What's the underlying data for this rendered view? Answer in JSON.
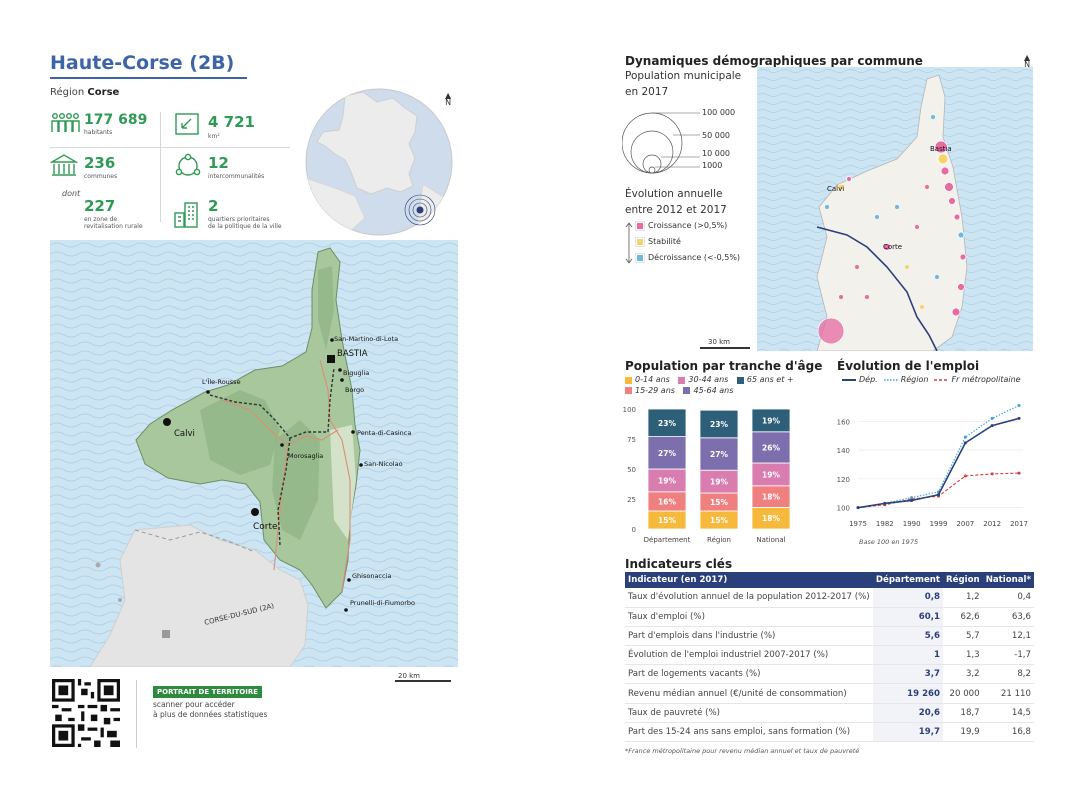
{
  "left": {
    "title": "Haute-Corse (2B)",
    "region_prefix": "Région ",
    "region_name": "Corse",
    "stats": {
      "habitants_value": "177 689",
      "habitants_label": "habitants",
      "area_value": "4 721",
      "area_label": "km²",
      "communes_value": "236",
      "communes_label": "communes",
      "interco_value": "12",
      "interco_label": "intercommunalités",
      "dont_label": "dont",
      "rural_value": "227",
      "rural_label_1": "en zone de",
      "rural_label_2": "revitalisation rurale",
      "quartiers_value": "2",
      "quartiers_label_1": "quartiers prioritaires",
      "quartiers_label_2": "de la politique de la ville"
    },
    "north": "N",
    "map_labels": {
      "san_martino": "San-Martino-di-Lota",
      "bastia": "BASTIA",
      "ile_rousse": "L'Île-Rousse",
      "biguglia": "Biguglia",
      "borgo": "Borgo",
      "calvi": "Calvi",
      "penta": "Penta-di-Casinca",
      "morosaglia": "Morosaglia",
      "san_nicolao": "San-Nicolao",
      "corte": "Corte",
      "ghisonaccia": "Ghisonaccia",
      "prunelli": "Prunelli-di-Fiumorbo",
      "corse_du_sud": "CORSE-DU-SUD (2A)"
    },
    "scale": "20 km",
    "badge": "PORTRAIT DE TERRITOIRE",
    "scan_1": "scanner pour accéder",
    "scan_2": "à plus de données statistiques"
  },
  "right": {
    "title": "Dynamiques démographiques par commune",
    "north": "N",
    "pop_title": "Population municipale",
    "pop_sub": "en 2017",
    "circle_labels": [
      "100 000",
      "50 000",
      "10 000",
      "1000"
    ],
    "evo_title": "Évolution annuelle",
    "evo_sub": "entre 2012 et 2017",
    "legend": [
      {
        "label": "Croissance (>0,5%)",
        "color": "#e86aa0"
      },
      {
        "label": "Stabilité",
        "color": "#f5d46a"
      },
      {
        "label": "Décroissance (<-0,5%)",
        "color": "#6fb6e0"
      }
    ],
    "map_labels": {
      "bastia": "Bastia",
      "calvi": "Calvi",
      "corte": "Corte"
    },
    "scale": "30 km",
    "age_title": "Population par tranche d'âge",
    "emp_title": "Évolution de l'emploi",
    "ind_title": "Indicateurs clés",
    "footnote": "*France métropolitaine pour revenu médian annuel et taux de pauvreté"
  },
  "chart_data": [
    {
      "type": "bar",
      "title": "Population par tranche d'âge",
      "stacked": true,
      "categories": [
        "Département",
        "Région",
        "National"
      ],
      "ylim": [
        0,
        100
      ],
      "yticks": [
        0,
        25,
        50,
        75,
        100
      ],
      "series": [
        {
          "name": "0-14 ans",
          "color": "#f6b93b",
          "values": [
            15,
            15,
            18
          ]
        },
        {
          "name": "15-29 ans",
          "color": "#f08080",
          "values": [
            16,
            15,
            18
          ]
        },
        {
          "name": "30-44 ans",
          "color": "#d97cb0",
          "values": [
            19,
            19,
            19
          ]
        },
        {
          "name": "45-64 ans",
          "color": "#7d6fae",
          "values": [
            27,
            27,
            26
          ]
        },
        {
          "name": "65 ans et +",
          "color": "#2d5f78",
          "values": [
            23,
            23,
            19
          ]
        }
      ],
      "legend_order": [
        "0-14 ans",
        "30-44 ans",
        "65 ans et +",
        "15-29 ans",
        "45-64 ans"
      ]
    },
    {
      "type": "line",
      "title": "Évolution de l'emploi",
      "x": [
        "1975",
        "1982",
        "1990",
        "1999",
        "2007",
        "2012",
        "2017"
      ],
      "ylim": [
        97,
        172
      ],
      "yticks": [
        100,
        120,
        140,
        160
      ],
      "xlabel_note": "Base 100 en 1975",
      "series": [
        {
          "name": "Dép.",
          "color": "#2b3f7a",
          "style": "solid",
          "values": [
            100,
            103,
            105,
            109,
            145,
            157,
            162
          ]
        },
        {
          "name": "Région",
          "color": "#3aa3d8",
          "style": "dotted",
          "values": [
            100,
            103,
            107,
            111,
            149,
            162,
            171
          ]
        },
        {
          "name": "Fr métropolitaine",
          "color": "#d9383a",
          "style": "dashed",
          "values": [
            100,
            102,
            106,
            108,
            122,
            123.5,
            124
          ]
        }
      ]
    },
    {
      "type": "table",
      "title": "Indicateurs clés",
      "columns": [
        "Indicateur (en 2017)",
        "Département",
        "Région",
        "National*"
      ],
      "rows": [
        [
          "Taux d'évolution annuel de la population 2012-2017 (%)",
          "0,8",
          "1,2",
          "0,4"
        ],
        [
          "Taux d'emploi (%)",
          "60,1",
          "62,6",
          "63,6"
        ],
        [
          "Part d'emplois dans l'industrie (%)",
          "5,6",
          "5,7",
          "12,1"
        ],
        [
          "Évolution de l'emploi industriel 2007-2017 (%)",
          "1",
          "1,3",
          "-1,7"
        ],
        [
          "Part de logements vacants (%)",
          "3,7",
          "3,2",
          "8,2"
        ],
        [
          "Revenu médian annuel (€/unité de consommation)",
          "19 260",
          "20 000",
          "21 110"
        ],
        [
          "Taux de pauvreté (%)",
          "20,6",
          "18,7",
          "14,5"
        ],
        [
          "Part des 15-24 ans sans emploi, sans formation (%)",
          "19,7",
          "19,9",
          "16,8"
        ]
      ]
    }
  ]
}
